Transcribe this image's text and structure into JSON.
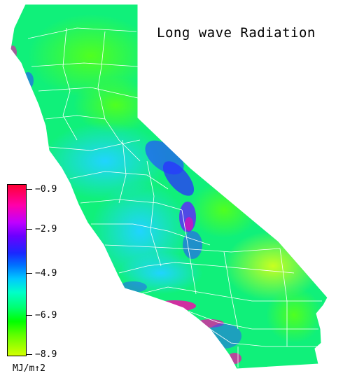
{
  "title": "Long wave Radiation",
  "legend": {
    "ticks": [
      "−0.9",
      "−2.9",
      "−4.9",
      "−6.9",
      "−8.9"
    ],
    "units": "MJ/m↑2",
    "min": -8.9,
    "max": -0.9
  },
  "colors": {
    "high": "#ff0033",
    "magenta": "#ff00aa",
    "blue": "#1a28ff",
    "cyan": "#00c8ff",
    "green": "#00ff00",
    "low": "#d4ff00",
    "county_lines": "#ffffff"
  }
}
